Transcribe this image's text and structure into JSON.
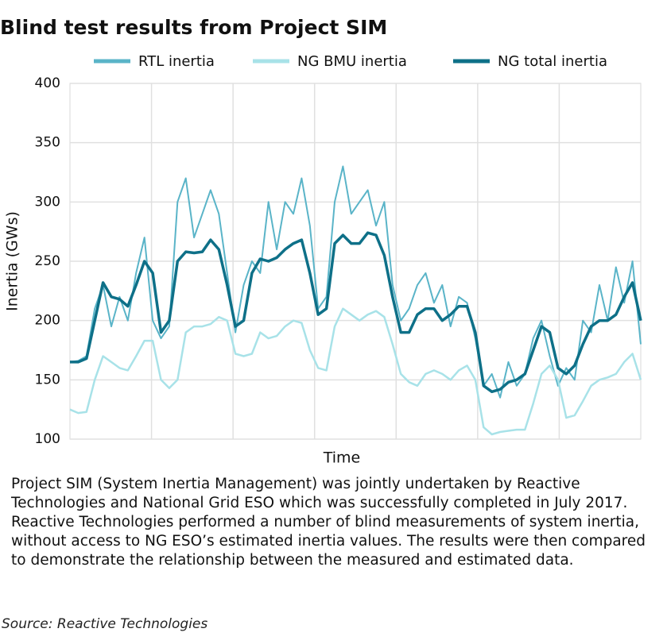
{
  "chart_data": {
    "type": "line",
    "title": "Blind test results from Project SIM",
    "xlabel": "Time",
    "ylabel": "Inertia (GWs)",
    "ylim": [
      100,
      400
    ],
    "yticks": [
      100,
      150,
      200,
      250,
      300,
      350,
      400
    ],
    "grid": true,
    "legend": "top",
    "series": [
      {
        "name": "RTL inertia",
        "color": "#5ab4c8",
        "values": [
          165,
          166,
          170,
          210,
          230,
          195,
          220,
          200,
          240,
          270,
          200,
          185,
          195,
          300,
          320,
          270,
          290,
          310,
          290,
          240,
          190,
          230,
          250,
          240,
          300,
          260,
          300,
          290,
          320,
          280,
          210,
          220,
          300,
          330,
          290,
          300,
          310,
          280,
          300,
          230,
          200,
          210,
          230,
          240,
          215,
          230,
          195,
          220,
          215,
          185,
          145,
          155,
          135,
          165,
          145,
          155,
          185,
          200,
          170,
          145,
          160,
          150,
          200,
          190,
          230,
          200,
          245,
          215,
          250,
          180
        ]
      },
      {
        "name": "NG BMU inertia",
        "color": "#a8e2e8",
        "values": [
          125,
          122,
          123,
          150,
          170,
          165,
          160,
          158,
          170,
          183,
          183,
          150,
          143,
          150,
          190,
          195,
          195,
          197,
          203,
          200,
          172,
          170,
          172,
          190,
          185,
          187,
          195,
          200,
          198,
          175,
          160,
          158,
          195,
          210,
          205,
          200,
          205,
          208,
          203,
          180,
          155,
          148,
          145,
          155,
          158,
          155,
          150,
          158,
          162,
          150,
          110,
          104,
          106,
          107,
          108,
          108,
          130,
          155,
          162,
          150,
          118,
          120,
          132,
          145,
          150,
          152,
          155,
          165,
          172,
          150
        ]
      },
      {
        "name": "NG total inertia",
        "color": "#0e7088",
        "values": [
          165,
          165,
          168,
          200,
          232,
          220,
          218,
          212,
          230,
          250,
          240,
          190,
          200,
          250,
          258,
          257,
          258,
          268,
          260,
          230,
          195,
          200,
          240,
          252,
          250,
          253,
          260,
          265,
          268,
          240,
          205,
          210,
          265,
          272,
          265,
          265,
          274,
          272,
          255,
          220,
          190,
          190,
          205,
          210,
          210,
          200,
          205,
          212,
          212,
          190,
          145,
          140,
          142,
          148,
          150,
          155,
          175,
          195,
          190,
          160,
          155,
          162,
          180,
          195,
          200,
          200,
          205,
          220,
          232,
          200
        ]
      }
    ]
  },
  "description": "Project SIM (System Inertia Management) was jointly undertaken by Reactive Technologies  and National Grid ESO which was successfully completed in July 2017. Reactive Technologies performed a number of blind measurements of system inertia, without access to NG ESO’s estimated inertia values. The results were then compared to demonstrate the relationship between the measured and estimated data.",
  "source": "Source: Reactive Technologies"
}
